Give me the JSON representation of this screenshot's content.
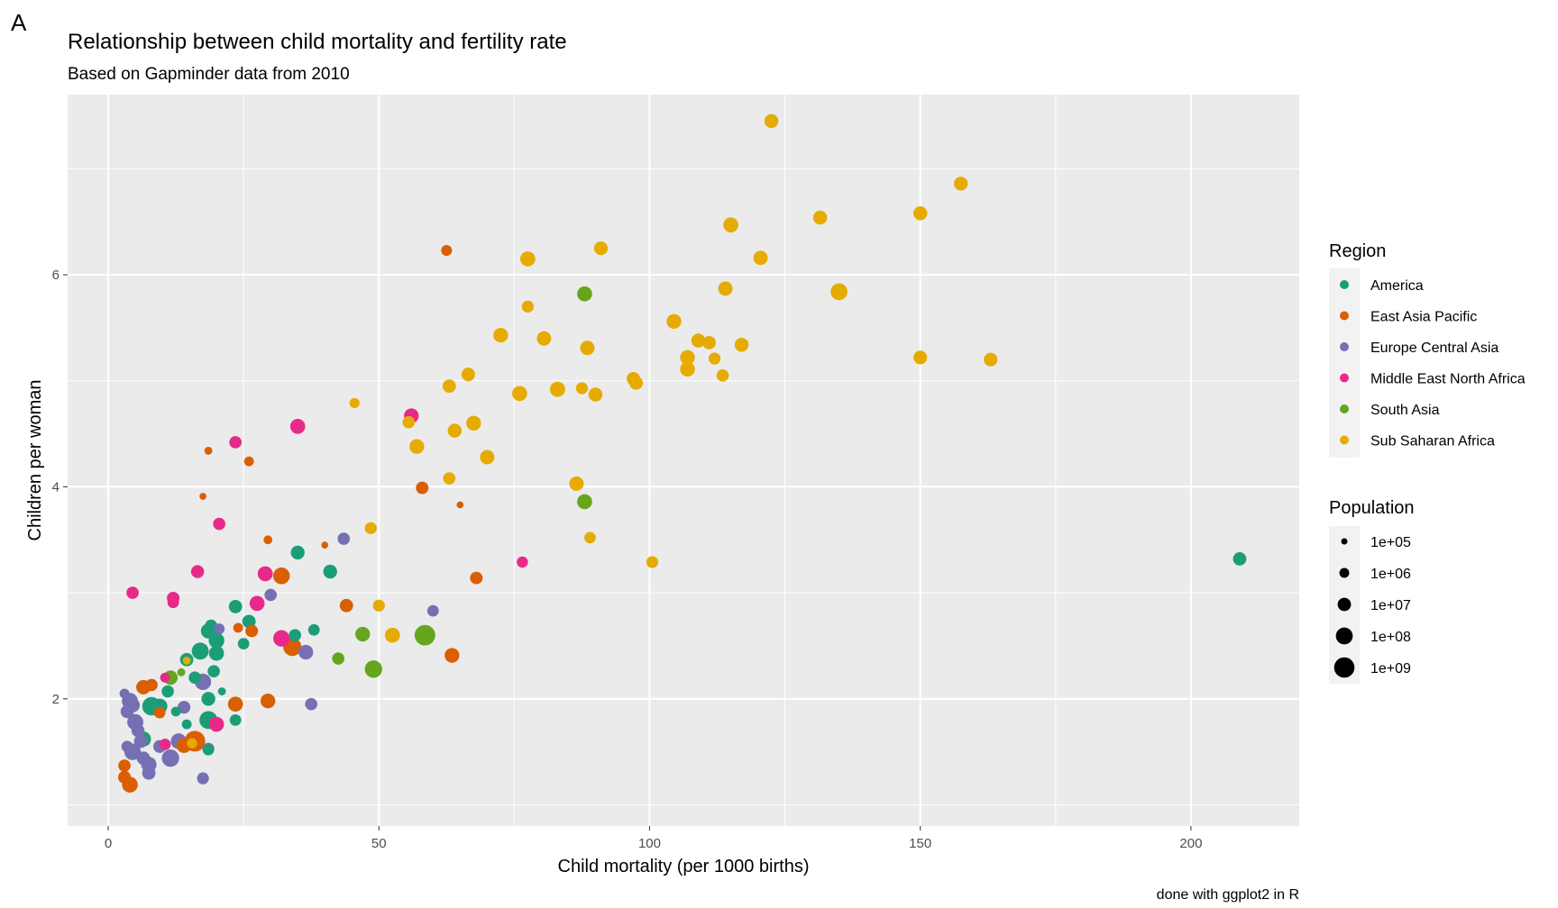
{
  "panel_tag": "A",
  "chart_data": {
    "type": "scatter",
    "title": "Relationship between child mortality and fertility rate",
    "subtitle": "Based on Gapminder data from 2010",
    "xlabel": "Child mortality (per 1000 births)",
    "ylabel": "Children per woman",
    "caption": "done with ggplot2 in R",
    "xlim": [
      -7.5,
      220
    ],
    "ylim": [
      0.8,
      7.7
    ],
    "x_ticks": [
      0,
      50,
      100,
      150,
      200
    ],
    "y_ticks": [
      2,
      4,
      6
    ],
    "grid": true,
    "legend_position": "right",
    "color_legend": {
      "title": "Region",
      "entries": [
        {
          "label": "America",
          "color": "#1b9e77"
        },
        {
          "label": "East Asia Pacific",
          "color": "#d95f02"
        },
        {
          "label": "Europe Central Asia",
          "color": "#7570b3"
        },
        {
          "label": "Middle East North Africa",
          "color": "#e7298a"
        },
        {
          "label": "South Asia",
          "color": "#66a61e"
        },
        {
          "label": "Sub Saharan Africa",
          "color": "#e6ab02"
        }
      ]
    },
    "size_legend": {
      "title": "Population",
      "entries": [
        {
          "label": "1e+05",
          "population": 100000
        },
        {
          "label": "1e+06",
          "population": 1000000
        },
        {
          "label": "1e+07",
          "population": 10000000
        },
        {
          "label": "1e+08",
          "population": 100000000
        },
        {
          "label": "1e+09",
          "population": 1000000000
        }
      ]
    },
    "points": [
      {
        "x": 122.5,
        "y": 7.45,
        "region": "Sub Saharan Africa",
        "pop": 15000000
      },
      {
        "x": 157.5,
        "y": 6.86,
        "region": "Sub Saharan Africa",
        "pop": 14000000
      },
      {
        "x": 150,
        "y": 6.58,
        "region": "Sub Saharan Africa",
        "pop": 15000000
      },
      {
        "x": 131.5,
        "y": 6.54,
        "region": "Sub Saharan Africa",
        "pop": 15000000
      },
      {
        "x": 115,
        "y": 6.47,
        "region": "Sub Saharan Africa",
        "pop": 30000000
      },
      {
        "x": 91,
        "y": 6.25,
        "region": "Sub Saharan Africa",
        "pop": 13000000
      },
      {
        "x": 77.5,
        "y": 6.15,
        "region": "Sub Saharan Africa",
        "pop": 30000000
      },
      {
        "x": 120.5,
        "y": 6.16,
        "region": "Sub Saharan Africa",
        "pop": 20000000
      },
      {
        "x": 114,
        "y": 5.87,
        "region": "Sub Saharan Africa",
        "pop": 20000000
      },
      {
        "x": 135,
        "y": 5.84,
        "region": "Sub Saharan Africa",
        "pop": 100000000
      },
      {
        "x": 77.5,
        "y": 5.7,
        "region": "Sub Saharan Africa",
        "pop": 4000000
      },
      {
        "x": 104.5,
        "y": 5.56,
        "region": "Sub Saharan Africa",
        "pop": 25000000
      },
      {
        "x": 72.5,
        "y": 5.43,
        "region": "Sub Saharan Africa",
        "pop": 25000000
      },
      {
        "x": 80.5,
        "y": 5.4,
        "region": "Sub Saharan Africa",
        "pop": 20000000
      },
      {
        "x": 109,
        "y": 5.38,
        "region": "Sub Saharan Africa",
        "pop": 15000000
      },
      {
        "x": 111,
        "y": 5.36,
        "region": "Sub Saharan Africa",
        "pop": 10000000
      },
      {
        "x": 117,
        "y": 5.34,
        "region": "Sub Saharan Africa",
        "pop": 15000000
      },
      {
        "x": 88.5,
        "y": 5.31,
        "region": "Sub Saharan Africa",
        "pop": 20000000
      },
      {
        "x": 107,
        "y": 5.22,
        "region": "Sub Saharan Africa",
        "pop": 25000000
      },
      {
        "x": 112,
        "y": 5.21,
        "region": "Sub Saharan Africa",
        "pop": 4000000
      },
      {
        "x": 150,
        "y": 5.22,
        "region": "Sub Saharan Africa",
        "pop": 12000000
      },
      {
        "x": 163,
        "y": 5.2,
        "region": "Sub Saharan Africa",
        "pop": 12000000
      },
      {
        "x": 107,
        "y": 5.11,
        "region": "Sub Saharan Africa",
        "pop": 25000000
      },
      {
        "x": 66.5,
        "y": 5.06,
        "region": "Sub Saharan Africa",
        "pop": 12000000
      },
      {
        "x": 113.5,
        "y": 5.05,
        "region": "Sub Saharan Africa",
        "pop": 5000000
      },
      {
        "x": 97,
        "y": 5.02,
        "region": "Sub Saharan Africa",
        "pop": 10000000
      },
      {
        "x": 97.5,
        "y": 4.98,
        "region": "Sub Saharan Africa",
        "pop": 12000000
      },
      {
        "x": 63,
        "y": 4.95,
        "region": "Sub Saharan Africa",
        "pop": 10000000
      },
      {
        "x": 83,
        "y": 4.92,
        "region": "Sub Saharan Africa",
        "pop": 35000000
      },
      {
        "x": 87.5,
        "y": 4.93,
        "region": "Sub Saharan Africa",
        "pop": 4000000
      },
      {
        "x": 76,
        "y": 4.88,
        "region": "Sub Saharan Africa",
        "pop": 30000000
      },
      {
        "x": 90,
        "y": 4.87,
        "region": "Sub Saharan Africa",
        "pop": 15000000
      },
      {
        "x": 45.5,
        "y": 4.79,
        "region": "Sub Saharan Africa",
        "pop": 1200000
      },
      {
        "x": 55.5,
        "y": 4.61,
        "region": "Sub Saharan Africa",
        "pop": 5000000
      },
      {
        "x": 67.5,
        "y": 4.6,
        "region": "Sub Saharan Africa",
        "pop": 25000000
      },
      {
        "x": 64,
        "y": 4.53,
        "region": "Sub Saharan Africa",
        "pop": 15000000
      },
      {
        "x": 57,
        "y": 4.38,
        "region": "Sub Saharan Africa",
        "pop": 25000000
      },
      {
        "x": 70,
        "y": 4.28,
        "region": "Sub Saharan Africa",
        "pop": 20000000
      },
      {
        "x": 63,
        "y": 4.08,
        "region": "Sub Saharan Africa",
        "pop": 5000000
      },
      {
        "x": 86.5,
        "y": 4.03,
        "region": "Sub Saharan Africa",
        "pop": 20000000
      },
      {
        "x": 48.5,
        "y": 3.61,
        "region": "Sub Saharan Africa",
        "pop": 4000000
      },
      {
        "x": 89,
        "y": 3.52,
        "region": "Sub Saharan Africa",
        "pop": 3000000
      },
      {
        "x": 100.5,
        "y": 3.29,
        "region": "Sub Saharan Africa",
        "pop": 4000000
      },
      {
        "x": 50,
        "y": 2.88,
        "region": "Sub Saharan Africa",
        "pop": 4000000
      },
      {
        "x": 52.5,
        "y": 2.6,
        "region": "Sub Saharan Africa",
        "pop": 30000000
      },
      {
        "x": 14.5,
        "y": 2.36,
        "region": "Sub Saharan Africa",
        "pop": 300000
      },
      {
        "x": 15.5,
        "y": 1.58,
        "region": "Sub Saharan Africa",
        "pop": 1300000
      },
      {
        "x": 88,
        "y": 5.82,
        "region": "South Asia",
        "pop": 30000000
      },
      {
        "x": 88,
        "y": 3.86,
        "region": "South Asia",
        "pop": 30000000
      },
      {
        "x": 58.5,
        "y": 2.6,
        "region": "South Asia",
        "pop": 1200000000
      },
      {
        "x": 47,
        "y": 2.61,
        "region": "South Asia",
        "pop": 25000000
      },
      {
        "x": 49,
        "y": 2.28,
        "region": "South Asia",
        "pop": 150000000
      },
      {
        "x": 42.5,
        "y": 2.38,
        "region": "South Asia",
        "pop": 5000000
      },
      {
        "x": 13.5,
        "y": 2.25,
        "region": "South Asia",
        "pop": 300000
      },
      {
        "x": 11.5,
        "y": 2.2,
        "region": "South Asia",
        "pop": 20000000
      },
      {
        "x": 62.5,
        "y": 6.23,
        "region": "East Asia Pacific",
        "pop": 2000000
      },
      {
        "x": 18.5,
        "y": 4.34,
        "region": "East Asia Pacific",
        "pop": 300000
      },
      {
        "x": 26,
        "y": 4.24,
        "region": "East Asia Pacific",
        "pop": 1000000
      },
      {
        "x": 58,
        "y": 3.99,
        "region": "East Asia Pacific",
        "pop": 6000000
      },
      {
        "x": 17.5,
        "y": 3.91,
        "region": "East Asia Pacific",
        "pop": 150000
      },
      {
        "x": 65,
        "y": 3.83,
        "region": "East Asia Pacific",
        "pop": 150000
      },
      {
        "x": 29.5,
        "y": 3.5,
        "region": "East Asia Pacific",
        "pop": 500000
      },
      {
        "x": 40,
        "y": 3.45,
        "region": "East Asia Pacific",
        "pop": 150000
      },
      {
        "x": 32,
        "y": 3.16,
        "region": "East Asia Pacific",
        "pop": 90000000
      },
      {
        "x": 68,
        "y": 3.14,
        "region": "East Asia Pacific",
        "pop": 6000000
      },
      {
        "x": 44,
        "y": 2.88,
        "region": "East Asia Pacific",
        "pop": 10000000
      },
      {
        "x": 24,
        "y": 2.67,
        "region": "East Asia Pacific",
        "pop": 1000000
      },
      {
        "x": 26.5,
        "y": 2.64,
        "region": "East Asia Pacific",
        "pop": 6000000
      },
      {
        "x": 34,
        "y": 2.49,
        "region": "East Asia Pacific",
        "pop": 240000000
      },
      {
        "x": 63.5,
        "y": 2.41,
        "region": "East Asia Pacific",
        "pop": 25000000
      },
      {
        "x": 23.5,
        "y": 1.95,
        "region": "East Asia Pacific",
        "pop": 30000000
      },
      {
        "x": 29.5,
        "y": 1.98,
        "region": "East Asia Pacific",
        "pop": 25000000
      },
      {
        "x": 6.5,
        "y": 2.11,
        "region": "East Asia Pacific",
        "pop": 20000000
      },
      {
        "x": 8,
        "y": 2.13,
        "region": "East Asia Pacific",
        "pop": 5000000
      },
      {
        "x": 9.5,
        "y": 1.87,
        "region": "East Asia Pacific",
        "pop": 3000000
      },
      {
        "x": 14,
        "y": 1.56,
        "region": "East Asia Pacific",
        "pop": 30000000
      },
      {
        "x": 16,
        "y": 1.6,
        "region": "East Asia Pacific",
        "pop": 1300000000
      },
      {
        "x": 3,
        "y": 1.37,
        "region": "East Asia Pacific",
        "pop": 5000000
      },
      {
        "x": 3,
        "y": 1.26,
        "region": "East Asia Pacific",
        "pop": 7000000
      },
      {
        "x": 4,
        "y": 1.19,
        "region": "East Asia Pacific",
        "pop": 50000000
      },
      {
        "x": 23.5,
        "y": 4.42,
        "region": "Middle East North Africa",
        "pop": 5000000
      },
      {
        "x": 35,
        "y": 4.57,
        "region": "Middle East North Africa",
        "pop": 30000000
      },
      {
        "x": 56,
        "y": 4.67,
        "region": "Middle East North Africa",
        "pop": 25000000
      },
      {
        "x": 20.5,
        "y": 3.65,
        "region": "Middle East North Africa",
        "pop": 5000000
      },
      {
        "x": 76.5,
        "y": 3.29,
        "region": "Middle East North Africa",
        "pop": 2500000
      },
      {
        "x": 16.5,
        "y": 3.2,
        "region": "Middle East North Africa",
        "pop": 8000000
      },
      {
        "x": 29,
        "y": 3.18,
        "region": "Middle East North Africa",
        "pop": 30000000
      },
      {
        "x": 4.5,
        "y": 3.0,
        "region": "Middle East North Africa",
        "pop": 5000000
      },
      {
        "x": 12,
        "y": 2.95,
        "region": "Middle East North Africa",
        "pop": 6000000
      },
      {
        "x": 12,
        "y": 2.91,
        "region": "Middle East North Africa",
        "pop": 3000000
      },
      {
        "x": 27.5,
        "y": 2.9,
        "region": "Middle East North Africa",
        "pop": 30000000
      },
      {
        "x": 32,
        "y": 2.57,
        "region": "Middle East North Africa",
        "pop": 80000000
      },
      {
        "x": 10.5,
        "y": 2.2,
        "region": "Middle East North Africa",
        "pop": 1000000
      },
      {
        "x": 20,
        "y": 1.76,
        "region": "Middle East North Africa",
        "pop": 30000000
      },
      {
        "x": 10.5,
        "y": 1.57,
        "region": "Middle East North Africa",
        "pop": 3000000
      },
      {
        "x": 43.5,
        "y": 3.51,
        "region": "Europe Central Asia",
        "pop": 5000000
      },
      {
        "x": 30,
        "y": 2.98,
        "region": "Europe Central Asia",
        "pop": 5000000
      },
      {
        "x": 60,
        "y": 2.83,
        "region": "Europe Central Asia",
        "pop": 3000000
      },
      {
        "x": 20.5,
        "y": 2.66,
        "region": "Europe Central Asia",
        "pop": 2000000
      },
      {
        "x": 36.5,
        "y": 2.44,
        "region": "Europe Central Asia",
        "pop": 25000000
      },
      {
        "x": 37.5,
        "y": 1.95,
        "region": "Europe Central Asia",
        "pop": 5000000
      },
      {
        "x": 17.5,
        "y": 2.16,
        "region": "Europe Central Asia",
        "pop": 70000000
      },
      {
        "x": 14,
        "y": 1.92,
        "region": "Europe Central Asia",
        "pop": 7000000
      },
      {
        "x": 3,
        "y": 2.05,
        "region": "Europe Central Asia",
        "pop": 1000000
      },
      {
        "x": 4,
        "y": 1.98,
        "region": "Europe Central Asia",
        "pop": 60000000
      },
      {
        "x": 3.5,
        "y": 1.88,
        "region": "Europe Central Asia",
        "pop": 9000000
      },
      {
        "x": 4.5,
        "y": 1.94,
        "region": "Europe Central Asia",
        "pop": 20000000
      },
      {
        "x": 5,
        "y": 1.78,
        "region": "Europe Central Asia",
        "pop": 60000000
      },
      {
        "x": 6,
        "y": 1.6,
        "region": "Europe Central Asia",
        "pop": 10000000
      },
      {
        "x": 3.5,
        "y": 1.55,
        "region": "Europe Central Asia",
        "pop": 3000000
      },
      {
        "x": 4.5,
        "y": 1.5,
        "region": "Europe Central Asia",
        "pop": 80000000
      },
      {
        "x": 6.5,
        "y": 1.44,
        "region": "Europe Central Asia",
        "pop": 10000000
      },
      {
        "x": 7.5,
        "y": 1.38,
        "region": "Europe Central Asia",
        "pop": 40000000
      },
      {
        "x": 9.5,
        "y": 1.55,
        "region": "Europe Central Asia",
        "pop": 7000000
      },
      {
        "x": 11.5,
        "y": 1.44,
        "region": "Europe Central Asia",
        "pop": 140000000
      },
      {
        "x": 13,
        "y": 1.6,
        "region": "Europe Central Asia",
        "pop": 45000000
      },
      {
        "x": 7.5,
        "y": 1.3,
        "region": "Europe Central Asia",
        "pop": 10000000
      },
      {
        "x": 18.5,
        "y": 1.53,
        "region": "Europe Central Asia",
        "pop": 4000000
      },
      {
        "x": 17.5,
        "y": 1.25,
        "region": "Europe Central Asia",
        "pop": 4000000
      },
      {
        "x": 5.5,
        "y": 1.7,
        "region": "Europe Central Asia",
        "pop": 8000000
      },
      {
        "x": 209,
        "y": 3.32,
        "region": "America",
        "pop": 10000000
      },
      {
        "x": 35,
        "y": 3.38,
        "region": "America",
        "pop": 14000000
      },
      {
        "x": 41,
        "y": 3.2,
        "region": "America",
        "pop": 14000000
      },
      {
        "x": 23.5,
        "y": 2.87,
        "region": "America",
        "pop": 10000000
      },
      {
        "x": 26,
        "y": 2.73,
        "region": "America",
        "pop": 10000000
      },
      {
        "x": 19,
        "y": 2.69,
        "region": "America",
        "pop": 5000000
      },
      {
        "x": 18.5,
        "y": 2.64,
        "region": "America",
        "pop": 30000000
      },
      {
        "x": 34.5,
        "y": 2.6,
        "region": "America",
        "pop": 5000000
      },
      {
        "x": 38,
        "y": 2.65,
        "region": "America",
        "pop": 3000000
      },
      {
        "x": 20,
        "y": 2.55,
        "region": "America",
        "pop": 45000000
      },
      {
        "x": 25,
        "y": 2.52,
        "region": "America",
        "pop": 3000000
      },
      {
        "x": 17,
        "y": 2.45,
        "region": "America",
        "pop": 110000000
      },
      {
        "x": 20,
        "y": 2.43,
        "region": "America",
        "pop": 30000000
      },
      {
        "x": 14.5,
        "y": 2.37,
        "region": "America",
        "pop": 10000000
      },
      {
        "x": 19.5,
        "y": 2.26,
        "region": "America",
        "pop": 5000000
      },
      {
        "x": 16,
        "y": 2.2,
        "region": "America",
        "pop": 5000000
      },
      {
        "x": 21,
        "y": 2.07,
        "region": "America",
        "pop": 300000
      },
      {
        "x": 18.5,
        "y": 2.0,
        "region": "America",
        "pop": 14000000
      },
      {
        "x": 11,
        "y": 2.07,
        "region": "America",
        "pop": 5000000
      },
      {
        "x": 8,
        "y": 1.93,
        "region": "America",
        "pop": 300000000
      },
      {
        "x": 9.5,
        "y": 1.93,
        "region": "America",
        "pop": 40000000
      },
      {
        "x": 18.5,
        "y": 1.8,
        "region": "America",
        "pop": 200000000
      },
      {
        "x": 23.5,
        "y": 1.8,
        "region": "America",
        "pop": 3000000
      },
      {
        "x": 12.5,
        "y": 1.88,
        "region": "America",
        "pop": 1000000
      },
      {
        "x": 14.5,
        "y": 1.76,
        "region": "America",
        "pop": 1000000
      },
      {
        "x": 6.5,
        "y": 1.62,
        "region": "America",
        "pop": 34000000
      },
      {
        "x": 18.5,
        "y": 1.52,
        "region": "America",
        "pop": 3000000
      }
    ]
  }
}
